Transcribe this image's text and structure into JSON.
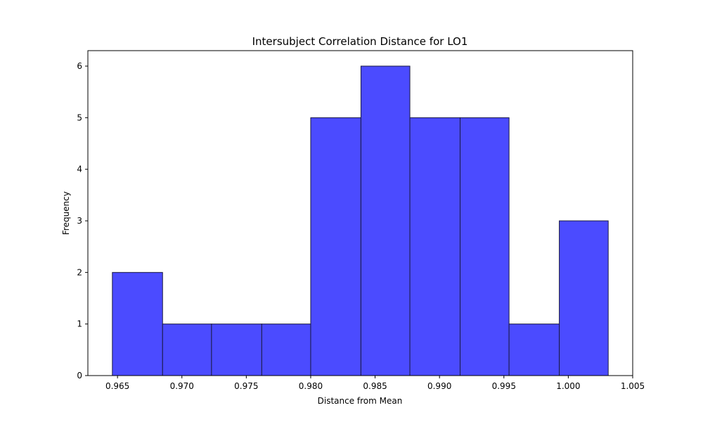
{
  "chart_data": {
    "type": "bar",
    "title": "Intersubject Correlation Distance for LO1",
    "xlabel": "Distance from Mean",
    "ylabel": "Frequency",
    "bin_edges": [
      0.9646,
      0.9685,
      0.9723,
      0.9762,
      0.98,
      0.9839,
      0.9877,
      0.9916,
      0.9954,
      0.9993,
      1.0031
    ],
    "values": [
      2,
      1,
      1,
      1,
      5,
      6,
      5,
      5,
      1,
      3
    ],
    "xlim": [
      0.9627,
      1.005
    ],
    "ylim": [
      0,
      6.3
    ],
    "xticks": [
      0.965,
      0.97,
      0.975,
      0.98,
      0.985,
      0.99,
      0.995,
      1.0,
      1.005
    ],
    "xtick_labels": [
      "0.965",
      "0.970",
      "0.975",
      "0.980",
      "0.985",
      "0.990",
      "0.995",
      "1.000",
      "1.005"
    ],
    "yticks": [
      0,
      1,
      2,
      3,
      4,
      5,
      6
    ],
    "ytick_labels": [
      "0",
      "1",
      "2",
      "3",
      "4",
      "5",
      "6"
    ],
    "bar_color": "#4b4bff",
    "edge_color": "#1a1a40",
    "grid": false,
    "legend": "none"
  }
}
